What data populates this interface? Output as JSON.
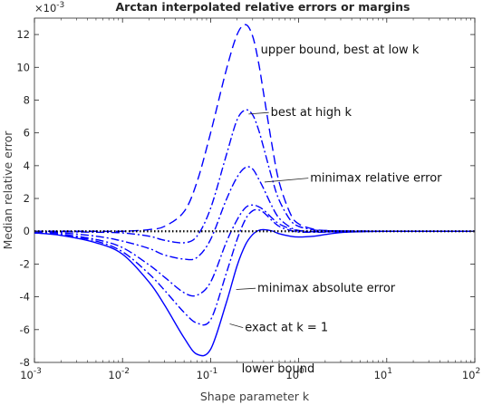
{
  "chart_data": {
    "type": "line",
    "title": "Arctan interpolated relative errors or margins",
    "xlabel": "Shape parameter k",
    "ylabel": "Median relative error",
    "xscale": "log",
    "xlim": [
      0.001,
      100
    ],
    "ylim": [
      -8,
      13
    ],
    "y_exponent_label": "×10",
    "y_exponent_power": "-3",
    "xticks": [
      {
        "base": "10",
        "exp": "-3",
        "value": 0.001
      },
      {
        "base": "10",
        "exp": "-2",
        "value": 0.01
      },
      {
        "base": "10",
        "exp": "-1",
        "value": 0.1
      },
      {
        "base": "10",
        "exp": "0",
        "value": 1
      },
      {
        "base": "10",
        "exp": "1",
        "value": 10
      },
      {
        "base": "10",
        "exp": "2",
        "value": 100
      }
    ],
    "yticks": [
      {
        "label": "-8",
        "value": -8
      },
      {
        "label": "-6",
        "value": -6
      },
      {
        "label": "-4",
        "value": -4
      },
      {
        "label": "-2",
        "value": -2
      },
      {
        "label": "0",
        "value": 0
      },
      {
        "label": "2",
        "value": 2
      },
      {
        "label": "4",
        "value": 4
      },
      {
        "label": "6",
        "value": 6
      },
      {
        "label": "8",
        "value": 8
      },
      {
        "label": "10",
        "value": 10
      },
      {
        "label": "12",
        "value": 12
      }
    ],
    "grid": false,
    "legend": "none",
    "x": [
      0.001,
      0.002,
      0.005,
      0.01,
      0.02,
      0.03,
      0.05,
      0.07,
      0.1,
      0.15,
      0.2,
      0.25,
      0.3,
      0.35,
      0.4,
      0.5,
      0.6,
      0.8,
      1,
      1.5,
      2,
      3,
      5,
      10,
      100
    ],
    "series": [
      {
        "name": "upper bound, best at low k",
        "color": "#0000ff",
        "dash": "dash",
        "values": [
          0,
          0,
          0,
          0,
          0.1,
          0.3,
          1.2,
          3.0,
          6.0,
          9.8,
          12.0,
          12.6,
          11.9,
          10.3,
          8.4,
          5.2,
          3.0,
          1.1,
          0.45,
          0.12,
          0.05,
          0.02,
          0.01,
          0,
          0
        ]
      },
      {
        "name": "best at high k",
        "color": "#0000ff",
        "dash": "dashdot",
        "values": [
          -0.02,
          -0.03,
          -0.06,
          -0.1,
          -0.3,
          -0.55,
          -0.7,
          -0.3,
          1.4,
          4.6,
          6.8,
          7.4,
          7.1,
          6.2,
          5.1,
          3.2,
          1.9,
          0.7,
          0.3,
          0.08,
          0.04,
          0.02,
          0.01,
          0,
          0
        ]
      },
      {
        "name": "minimax relative error",
        "color": "#0000ff",
        "dash": "dashdot",
        "values": [
          -0.05,
          -0.1,
          -0.3,
          -0.6,
          -1.05,
          -1.45,
          -1.7,
          -1.6,
          -0.5,
          1.9,
          3.3,
          3.9,
          3.8,
          3.2,
          2.6,
          1.5,
          0.8,
          0.25,
          0.05,
          -0.02,
          -0.02,
          -0.01,
          -0.01,
          0,
          0
        ]
      },
      {
        "name": "minimax absolute error",
        "color": "#0000ff",
        "dash": "dashdot",
        "values": [
          -0.08,
          -0.18,
          -0.5,
          -1.0,
          -2.05,
          -2.8,
          -3.75,
          -3.9,
          -3.1,
          -0.7,
          0.7,
          1.45,
          1.6,
          1.5,
          1.3,
          0.8,
          0.45,
          0.15,
          0.03,
          -0.03,
          -0.03,
          -0.02,
          -0.01,
          0,
          0
        ]
      },
      {
        "name": "exact at k = 1",
        "color": "#0000ff",
        "dash": "dashdot",
        "values": [
          -0.1,
          -0.22,
          -0.6,
          -1.25,
          -2.6,
          -3.6,
          -4.95,
          -5.6,
          -5.4,
          -2.6,
          -0.5,
          0.75,
          1.25,
          1.3,
          1.15,
          0.65,
          0.3,
          0.05,
          -0.05,
          -0.06,
          -0.05,
          -0.03,
          -0.01,
          0,
          0
        ]
      },
      {
        "name": "lower bound",
        "color": "#0000ff",
        "dash": "solid",
        "values": [
          -0.1,
          -0.25,
          -0.7,
          -1.4,
          -3.1,
          -4.5,
          -6.5,
          -7.5,
          -7.2,
          -4.4,
          -2.1,
          -0.8,
          -0.2,
          0.05,
          0.1,
          0.02,
          -0.15,
          -0.3,
          -0.35,
          -0.3,
          -0.2,
          -0.08,
          -0.03,
          0,
          0
        ]
      },
      {
        "name": "zero",
        "color": "#000000",
        "dash": "dot",
        "values": [
          0,
          0,
          0,
          0,
          0,
          0,
          0,
          0,
          0,
          0,
          0,
          0,
          0,
          0,
          0,
          0,
          0,
          0,
          0,
          0,
          0,
          0,
          0,
          0,
          0
        ]
      }
    ],
    "annotations": [
      {
        "text": "upper bound, best at low k",
        "at_x": 0.37,
        "at_y": 10.85,
        "leader": false
      },
      {
        "text": "best at high k",
        "at_x": 0.48,
        "at_y": 7.02,
        "leader": true,
        "leader_to_x": 0.27,
        "leader_to_y": 7.15
      },
      {
        "text": "minimax relative error",
        "at_x": 1.35,
        "at_y": 3.02,
        "leader": true,
        "leader_to_x": 0.41,
        "leader_to_y": 3.0
      },
      {
        "text": "minimax absolute error",
        "at_x": 0.34,
        "at_y": -3.7,
        "leader": true,
        "leader_to_x": 0.195,
        "leader_to_y": -3.55
      },
      {
        "text": "exact at k = 1",
        "at_x": 0.245,
        "at_y": -6.1,
        "leader": true,
        "leader_to_x": 0.165,
        "leader_to_y": -5.65
      },
      {
        "text": "lower bound",
        "at_x": 0.225,
        "at_y": -8.6,
        "leader": false
      }
    ]
  }
}
